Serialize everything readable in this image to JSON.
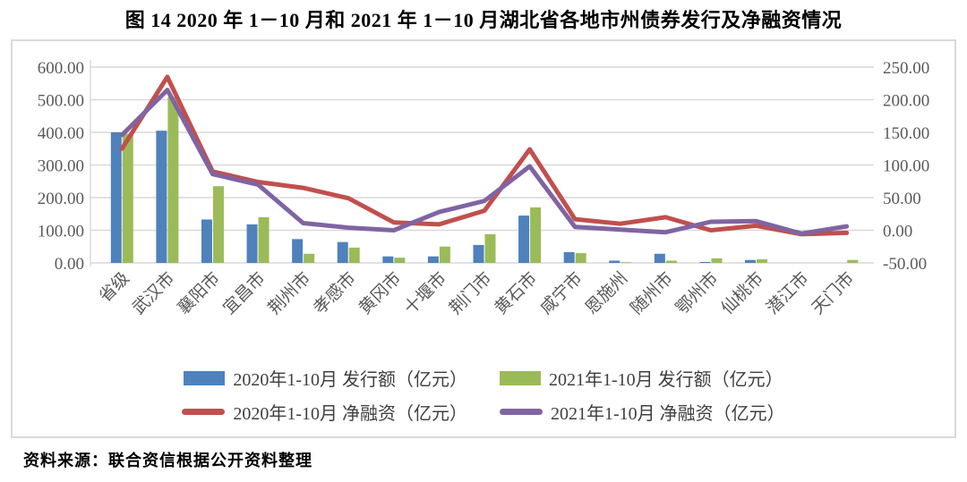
{
  "title": "图 14  2020 年 1－10 月和 2021 年 1－10 月湖北省各地市州债券发行及净融资情况",
  "source_note": "资料来源：联合资信根据公开资料整理",
  "colors": {
    "grid": "#d9d9d9",
    "axis_line": "#bfbfbf",
    "tick_text": "#595959",
    "legend_text": "#3f3f3f",
    "frame_border": "#d9d9d9"
  },
  "chart_data": {
    "type": "bar",
    "subtype": "dual-axis bar + line combo",
    "grid": true,
    "legend_position": "bottom",
    "categories": [
      "省级",
      "武汉市",
      "襄阳市",
      "宜昌市",
      "荆州市",
      "孝感市",
      "黄冈市",
      "十堰市",
      "荆门市",
      "黄石市",
      "咸宁市",
      "恩施州",
      "随州市",
      "鄂州市",
      "仙桃市",
      "潜江市",
      "天门市"
    ],
    "left_axis": {
      "min": 0,
      "max": 600,
      "step": 100,
      "tick_format": "0.00"
    },
    "right_axis": {
      "min": -50,
      "max": 250,
      "step": 50,
      "tick_format": "0.00"
    },
    "series": [
      {
        "name": "2020年1-10月 发行额（亿元）",
        "render": "bar",
        "axis": "left",
        "color": "#4f81bd",
        "values": [
          400,
          405,
          133,
          118,
          73,
          64,
          20,
          20,
          55,
          145,
          33,
          7,
          28,
          3,
          9,
          0,
          0
        ]
      },
      {
        "name": "2021年1-10月 发行额（亿元）",
        "render": "bar",
        "axis": "left",
        "color": "#9bbb59",
        "values": [
          396,
          508,
          235,
          140,
          28,
          47,
          16,
          50,
          88,
          170,
          30,
          2,
          7,
          14,
          11,
          0,
          9
        ]
      },
      {
        "name": "2020年1-10月 净融资（亿元）",
        "render": "line",
        "axis": "right",
        "color": "#c0504d",
        "values": [
          125,
          235,
          90,
          74,
          65,
          49,
          12,
          9,
          30,
          124,
          17,
          10,
          20,
          0,
          7,
          -6,
          -4
        ]
      },
      {
        "name": "2021年1-10月 净融资（亿元）",
        "render": "line",
        "axis": "right",
        "color": "#8064a2",
        "values": [
          146,
          215,
          86,
          70,
          11,
          4,
          0,
          28,
          45,
          98,
          5,
          1,
          -3,
          13,
          14,
          -5,
          6
        ]
      }
    ]
  }
}
